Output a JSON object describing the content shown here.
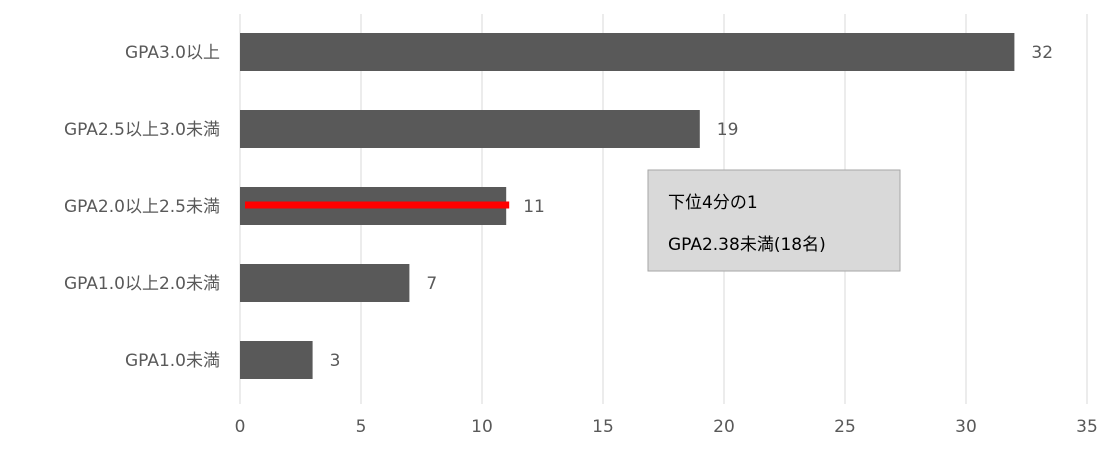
{
  "chart_data": {
    "type": "bar",
    "orientation": "horizontal",
    "categories": [
      "GPA3.0以上",
      "GPA2.5以上3.0未満",
      "GPA2.0以上2.5未満",
      "GPA1.0以上2.0未満",
      "GPA1.0未満"
    ],
    "values": [
      32,
      19,
      11,
      7,
      3
    ],
    "data_labels": [
      "32",
      "19",
      "11",
      "7",
      "3"
    ],
    "xlim": [
      0,
      35
    ],
    "x_ticks": [
      0,
      5,
      10,
      15,
      20,
      25,
      30,
      35
    ],
    "x_tick_labels": [
      "0",
      "5",
      "10",
      "15",
      "20",
      "25",
      "30",
      "35"
    ],
    "grid": "vertical",
    "legend": "none",
    "highlight": {
      "category": "GPA2.0以上2.5未満",
      "from": 0,
      "to": 11,
      "color": "#ff0000"
    },
    "annotation": {
      "lines": [
        "下位4分の1",
        "GPA2.38未満(18名)"
      ]
    },
    "colors": {
      "bar": "#595959",
      "grid": "#d9d9d9",
      "text": "#595959",
      "annotation_fill": "#d9d9d9",
      "annotation_border": "#a6a6a6",
      "annotation_text": "#000000"
    }
  }
}
